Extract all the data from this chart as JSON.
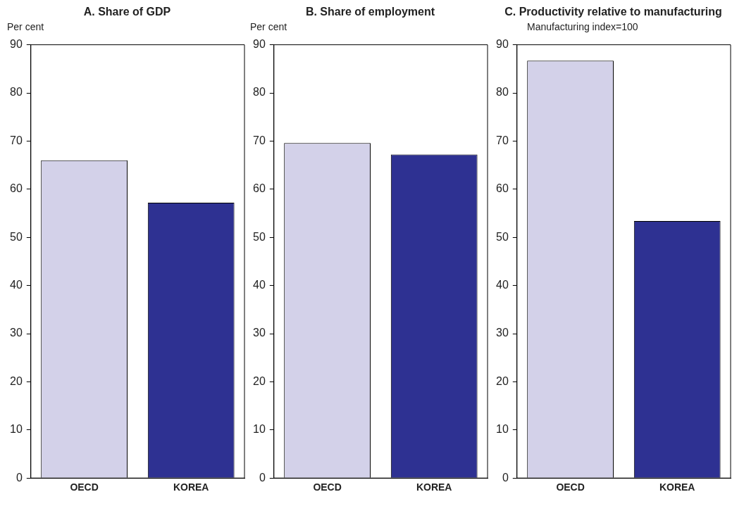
{
  "chart_data": [
    {
      "type": "bar",
      "title": "A. Share of GDP",
      "ylabel": "Per cent",
      "categories": [
        "OECD",
        "KOREA"
      ],
      "values": [
        66.0,
        57.2
      ],
      "colors": [
        "#d3d1e9",
        "#2e3192"
      ],
      "ylim": [
        0,
        90
      ],
      "yticks": [
        0,
        10,
        20,
        30,
        40,
        50,
        60,
        70,
        80,
        90
      ],
      "grid": false,
      "legend": false
    },
    {
      "type": "bar",
      "title": "B. Share of employment",
      "ylabel": "Per cent",
      "categories": [
        "OECD",
        "KOREA"
      ],
      "values": [
        69.6,
        67.2
      ],
      "colors": [
        "#d3d1e9",
        "#2e3192"
      ],
      "ylim": [
        0,
        90
      ],
      "yticks": [
        0,
        10,
        20,
        30,
        40,
        50,
        60,
        70,
        80,
        90
      ],
      "grid": false,
      "legend": false
    },
    {
      "type": "bar",
      "title": "C. Productivity relative to manufacturing",
      "ylabel": "Manufacturing index=100",
      "categories": [
        "OECD",
        "KOREA"
      ],
      "values": [
        86.7,
        53.4
      ],
      "colors": [
        "#d3d1e9",
        "#2e3192"
      ],
      "ylim": [
        0,
        90
      ],
      "yticks": [
        0,
        10,
        20,
        30,
        40,
        50,
        60,
        70,
        80,
        90
      ],
      "grid": false,
      "legend": false
    }
  ]
}
